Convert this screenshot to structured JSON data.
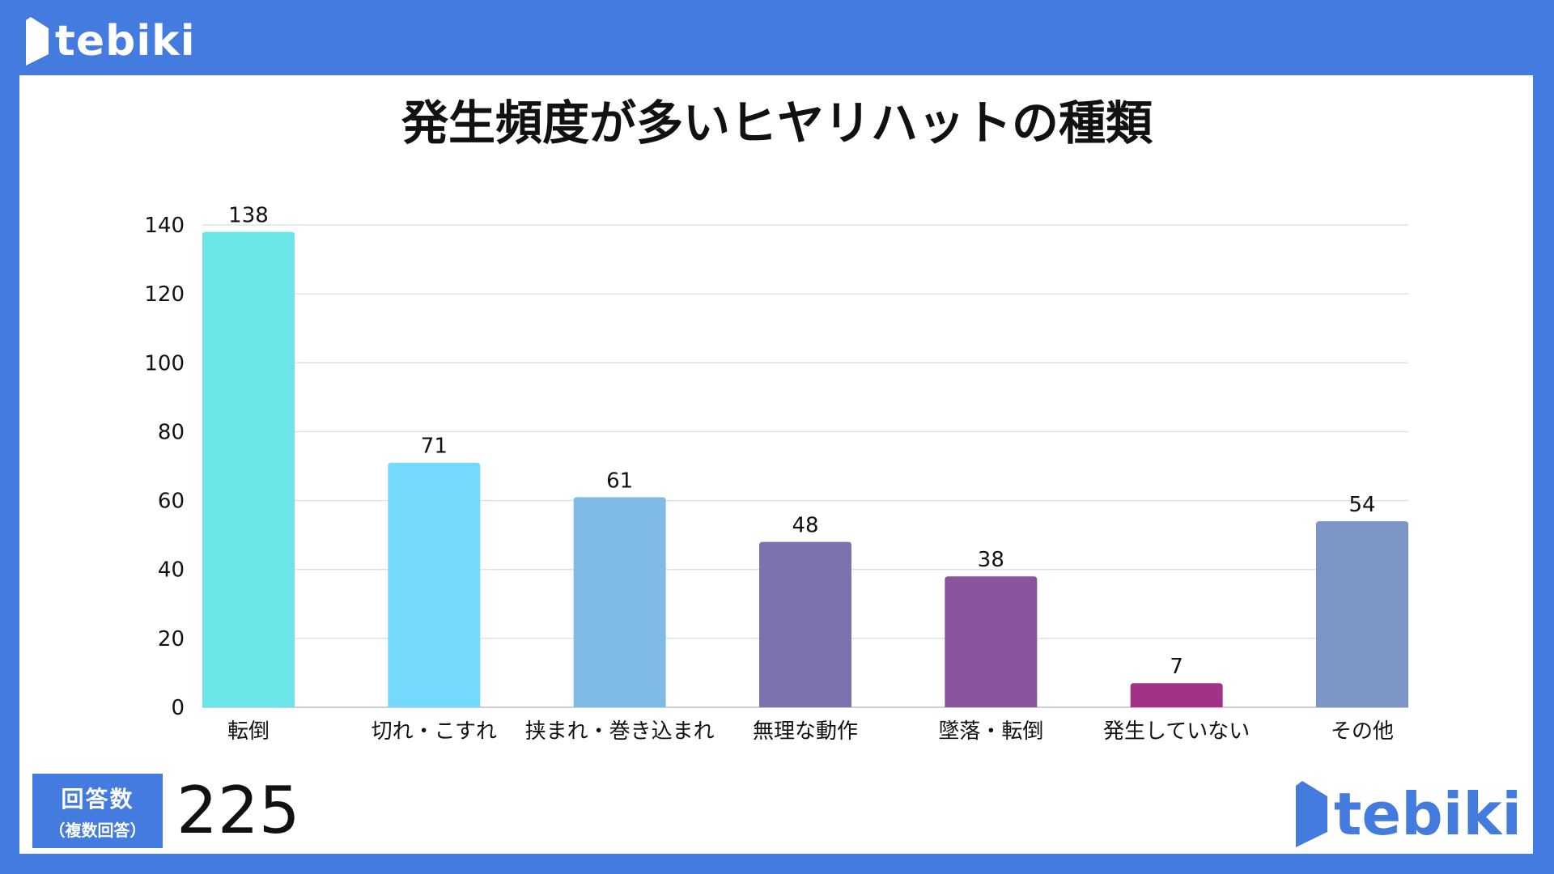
{
  "brand": {
    "logo_text": "tebiki",
    "header_logo_color": "#ffffff",
    "footer_logo_color": "#437bdf",
    "frame_color": "#437bdf"
  },
  "chart_data": {
    "type": "bar",
    "title": "発生頻度が多いヒヤリハットの種類",
    "categories": [
      "転倒",
      "切れ・こすれ",
      "挟まれ・巻き込まれ",
      "無理な動作",
      "墜落・転倒",
      "発生していない",
      "その他"
    ],
    "values": [
      138,
      71,
      61,
      48,
      38,
      7,
      54
    ],
    "colors": [
      "#6ce5e8",
      "#74d9fc",
      "#80bbe6",
      "#7b72ae",
      "#8b559e",
      "#a03386",
      "#7d95c4"
    ],
    "yticks": [
      0,
      20,
      40,
      60,
      80,
      100,
      120,
      140
    ],
    "ylim": [
      0,
      140
    ],
    "xlabel": "",
    "ylabel": "",
    "grid": true,
    "legend": "none"
  },
  "responses": {
    "label": "回答数",
    "sublabel": "（複数回答）",
    "count": "225"
  }
}
